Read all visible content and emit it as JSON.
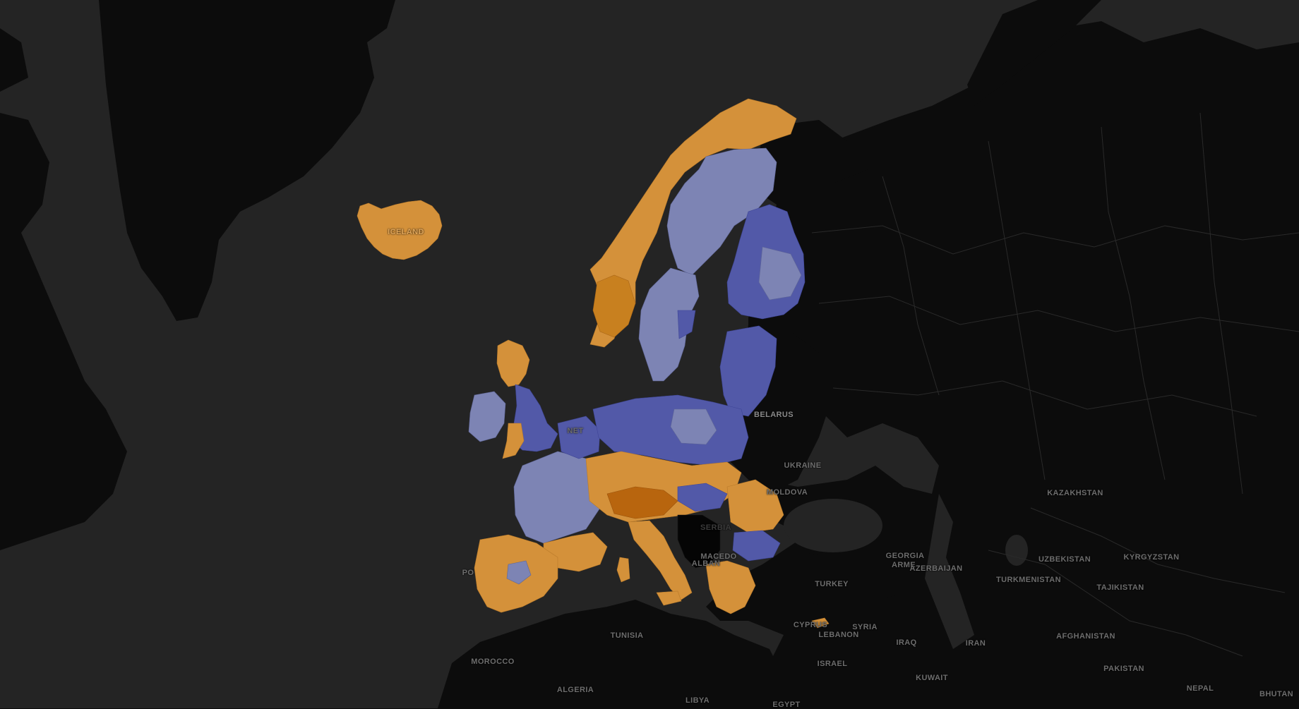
{
  "map": {
    "colors": {
      "ocean": "#242424",
      "land_dark": "#0c0c0c",
      "border": "#2c2c2c",
      "orange_light": "#d4913a",
      "orange_mid": "#c8801f",
      "orange_dark": "#b8650e",
      "blue_light": "#7d84b4",
      "blue_mid": "#5259a8",
      "blue_dark": "#3e4596",
      "black_region": "#050505"
    },
    "labels": {
      "iceland": "ICELAND",
      "belarus": "BELARUS",
      "ukraine": "UKRAINE",
      "moldova": "MOLDOVA",
      "serbia": "SERBIA",
      "macedonia": "MACEDO",
      "albania": "ALBAN",
      "turkey": "TURKEY",
      "georgia": "GEORGIA",
      "armenia": "ARME",
      "azerbaijan": "AZERBAIJAN",
      "kazakhstan": "KAZAKHSTAN",
      "uzbekistan": "UZBEKISTAN",
      "kyrgyzstan": "KYRGYZSTAN",
      "turkmenistan": "TURKMENISTAN",
      "tajikistan": "TAJIKISTAN",
      "afghanistan": "AFGHANISTAN",
      "pakistan": "PAKISTAN",
      "iran": "IRAN",
      "iraq": "IRAQ",
      "syria": "SYRIA",
      "lebanon": "LEBANON",
      "israel": "ISRAEL",
      "kuwait": "KUWAIT",
      "cyprus": "CYPRUS",
      "tunisia": "TUNISIA",
      "morocco": "MOROCCO",
      "algeria": "ALGERIA",
      "libya": "LIBYA",
      "egypt": "EGYPT",
      "nepal": "NEPAL",
      "bhutan": "BHUTAN",
      "portugal": "PO",
      "netherlands": "NET"
    }
  }
}
